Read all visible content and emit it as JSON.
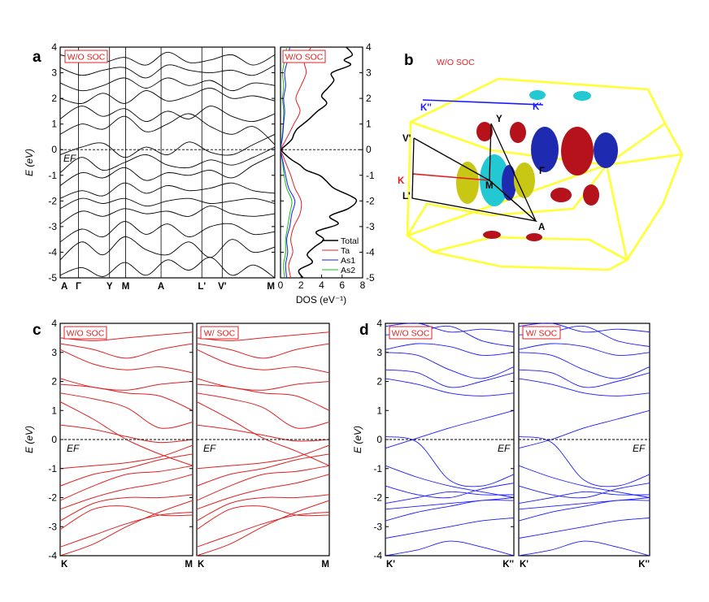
{
  "labels": {
    "panel_a": "a",
    "panel_b": "b",
    "panel_c": "c",
    "panel_d": "d",
    "wo_soc": "W/O SOC",
    "w_soc": "W/ SOC",
    "energy_axis": "E (eV)",
    "fermi": "EF",
    "dos_axis": "DOS (eV⁻¹)"
  },
  "colors": {
    "wo_soc_box": "#e02020",
    "c_bands": "#e02020",
    "d_bands": "#1a1aff",
    "bz": "#ffff33",
    "kpath_K": "#e02020",
    "kpath_Kp": "#1a1aff",
    "fs_red": "#b5121b",
    "fs_blue": "#1e2bb0",
    "fs_yellow": "#c8c814",
    "fs_cyan": "#22c8d2"
  },
  "panel_b": {
    "kpoints": [
      "K''",
      "K'",
      "Y",
      "V'",
      "Γ",
      "K",
      "M",
      "L'",
      "A"
    ]
  },
  "chart_data": [
    {
      "id": "a-bands",
      "type": "line",
      "ylabel": "E (eV)",
      "ylim": [
        -5,
        4
      ],
      "yticks": [
        -5,
        -4,
        -3,
        -2,
        -1,
        0,
        1,
        2,
        3,
        4
      ],
      "x_tick_labels": [
        "A",
        "Γ",
        "Y",
        "M",
        "A",
        "L'",
        "V'",
        "M"
      ],
      "x_tick_pos": [
        0,
        0.085,
        0.23,
        0.305,
        0.47,
        0.66,
        0.755,
        1.0
      ],
      "annotation": "EF",
      "box_label": "W/O SOC",
      "bands": [
        [
          -4.9,
          -4.6,
          -4.95,
          -4.4,
          -4.9,
          -4.3,
          -4.7,
          -4.2,
          -4.9,
          -4.5,
          -5.0
        ],
        [
          -4.3,
          -3.6,
          -4.1,
          -3.4,
          -3.9,
          -4.1,
          -3.6,
          -4.2,
          -3.5,
          -4.0,
          -3.8
        ],
        [
          -3.6,
          -3.1,
          -3.4,
          -2.8,
          -3.3,
          -2.9,
          -3.4,
          -3.0,
          -2.9,
          -3.3,
          -3.2
        ],
        [
          -2.9,
          -2.4,
          -2.6,
          -2.3,
          -2.5,
          -2.4,
          -2.6,
          -2.2,
          -2.5,
          -2.6,
          -2.5
        ],
        [
          -2.3,
          -1.9,
          -2.1,
          -1.9,
          -2.2,
          -2.0,
          -1.9,
          -2.1,
          -2.0,
          -1.9,
          -2.1
        ],
        [
          -1.9,
          -1.6,
          -1.8,
          -1.3,
          -1.7,
          -1.4,
          -1.6,
          -1.5,
          -1.3,
          -1.6,
          -1.7
        ],
        [
          -1.4,
          -0.9,
          -1.1,
          -0.7,
          -1.2,
          -0.9,
          -1.0,
          -0.8,
          -1.1,
          -0.6,
          -0.2
        ],
        [
          -0.9,
          -0.3,
          -0.8,
          -0.5,
          -0.2,
          -0.6,
          -0.7,
          -0.4,
          -0.6,
          -0.3,
          0.1
        ],
        [
          -0.2,
          0.1,
          0.25,
          -0.3,
          0.1,
          -0.2,
          0.3,
          -0.1,
          -0.2,
          0.2,
          0.6
        ],
        [
          0.6,
          1.0,
          0.8,
          1.3,
          0.7,
          1.0,
          1.4,
          0.9,
          0.6,
          0.9,
          0.2
        ],
        [
          1.2,
          1.7,
          1.3,
          1.6,
          1.1,
          1.5,
          1.2,
          1.7,
          1.3,
          1.1,
          1.4
        ],
        [
          2.0,
          1.8,
          2.2,
          1.8,
          2.3,
          1.9,
          2.1,
          2.4,
          2.0,
          2.1,
          1.9
        ],
        [
          2.6,
          2.3,
          2.5,
          2.8,
          2.4,
          2.8,
          2.5,
          2.7,
          2.3,
          2.6,
          2.5
        ],
        [
          3.2,
          2.9,
          3.1,
          3.2,
          2.8,
          3.3,
          3.1,
          3.0,
          3.1,
          2.9,
          3.3
        ],
        [
          3.7,
          3.5,
          3.4,
          3.6,
          3.3,
          3.8,
          3.4,
          3.5,
          3.7,
          3.3,
          3.7
        ]
      ]
    },
    {
      "id": "a-dos",
      "type": "line",
      "xlabel": "DOS (eV⁻¹)",
      "xlim": [
        0,
        8
      ],
      "xticks": [
        0,
        2,
        4,
        6,
        8
      ],
      "ylim": [
        -5,
        4
      ],
      "yticks": [
        -5,
        -4,
        -3,
        -2,
        -1,
        0,
        1,
        2,
        3,
        4
      ],
      "box_label": "W/O SOC",
      "legend": [
        "Total",
        "Ta",
        "As1",
        "As2"
      ],
      "legend_position": "bottom-right",
      "series": [
        {
          "name": "Total",
          "color": "#000000",
          "e": [
            -5.0,
            -4.7,
            -4.4,
            -4.1,
            -3.8,
            -3.5,
            -3.2,
            -2.9,
            -2.6,
            -2.3,
            -2.0,
            -1.8,
            -1.5,
            -1.2,
            -1.0,
            -0.8,
            -0.6,
            -0.4,
            -0.2,
            0.0,
            0.2,
            0.4,
            0.6,
            0.8,
            1.0,
            1.2,
            1.5,
            1.8,
            2.1,
            2.4,
            2.7,
            3.0,
            3.3,
            3.5,
            3.7,
            4.0
          ],
          "d": [
            2.2,
            1.8,
            3.1,
            2.6,
            3.3,
            4.2,
            3.5,
            5.6,
            4.8,
            6.6,
            7.4,
            6.8,
            5.2,
            4.4,
            3.8,
            2.5,
            1.9,
            1.1,
            0.5,
            0.1,
            0.6,
            1.1,
            1.3,
            1.6,
            2.2,
            2.8,
            3.6,
            4.5,
            4.0,
            4.6,
            5.2,
            5.0,
            6.8,
            6.2,
            7.0,
            6.4
          ]
        },
        {
          "name": "Ta",
          "color": "#e02020",
          "e": [
            -5.0,
            -4.5,
            -4.0,
            -3.5,
            -3.0,
            -2.5,
            -2.0,
            -1.5,
            -1.0,
            -0.6,
            -0.3,
            0.0,
            0.3,
            0.6,
            1.0,
            1.5,
            2.0,
            2.5,
            3.0,
            3.5,
            4.0
          ],
          "d": [
            1.0,
            0.8,
            1.2,
            1.0,
            1.3,
            1.9,
            2.0,
            1.4,
            1.0,
            0.6,
            0.3,
            0.05,
            0.4,
            0.8,
            1.3,
            1.9,
            1.5,
            2.0,
            2.5,
            2.3,
            3.0
          ]
        },
        {
          "name": "As1",
          "color": "#1a1aff",
          "e": [
            -5.0,
            -4.5,
            -4.0,
            -3.5,
            -3.0,
            -2.5,
            -2.0,
            -1.5,
            -1.0,
            -0.5,
            0.0,
            0.5,
            1.0,
            1.5,
            2.0,
            2.5,
            3.0,
            3.5,
            4.0
          ],
          "d": [
            0.6,
            0.5,
            0.7,
            0.6,
            0.9,
            1.1,
            1.4,
            0.8,
            0.5,
            0.25,
            0.03,
            0.2,
            0.3,
            0.4,
            0.3,
            0.5,
            0.4,
            0.7,
            0.9
          ]
        },
        {
          "name": "As2",
          "color": "#10c010",
          "e": [
            -5.0,
            -4.5,
            -4.0,
            -3.5,
            -3.0,
            -2.5,
            -2.0,
            -1.5,
            -1.0,
            -0.5,
            0.0,
            0.5,
            1.0,
            1.5,
            2.0,
            2.5,
            3.0,
            3.5,
            4.0
          ],
          "d": [
            0.4,
            0.3,
            0.5,
            0.5,
            0.7,
            0.9,
            1.1,
            0.6,
            0.35,
            0.2,
            0.02,
            0.15,
            0.25,
            0.3,
            0.2,
            0.3,
            0.2,
            0.4,
            0.6
          ]
        }
      ]
    },
    {
      "id": "c-wo",
      "type": "line",
      "ylabel": "E (eV)",
      "ylim": [
        -4,
        4
      ],
      "yticks": [
        -4,
        -3,
        -2,
        -1,
        0,
        1,
        2,
        3,
        4
      ],
      "x_tick_labels": [
        "K",
        "M"
      ],
      "annotation": "EF",
      "box_label": "W/O SOC",
      "color": "#e02020",
      "bands": [
        [
          -4.0,
          -3.6,
          -3.0,
          -2.5,
          -2.1
        ],
        [
          -3.7,
          -3.3,
          -2.9,
          -2.6,
          -2.5
        ],
        [
          -3.1,
          -2.4,
          -2.3,
          -2.6,
          -2.6
        ],
        [
          -2.8,
          -2.2,
          -2.0,
          -2.0,
          -1.9
        ],
        [
          -2.4,
          -2.0,
          -1.7,
          -1.5,
          -1.2
        ],
        [
          -2.1,
          -1.6,
          -1.2,
          -1.1,
          -0.9
        ],
        [
          -1.6,
          -1.2,
          -1.0,
          -0.7,
          -0.5
        ],
        [
          -1.0,
          -0.9,
          -0.8,
          -0.6,
          -0.2
        ],
        [
          1.3,
          0.7,
          0.0,
          -0.5,
          -0.9
        ],
        [
          0.5,
          0.35,
          0.1,
          -0.1,
          0.0
        ],
        [
          1.6,
          1.4,
          1.1,
          0.4,
          0.6
        ],
        [
          1.9,
          1.8,
          1.6,
          1.5,
          1.0
        ],
        [
          2.1,
          1.8,
          1.7,
          1.9,
          2.0
        ],
        [
          3.1,
          2.6,
          2.4,
          2.5,
          2.3
        ],
        [
          3.3,
          3.1,
          2.8,
          3.1,
          3.3
        ],
        [
          3.5,
          3.4,
          3.5,
          3.6,
          3.7
        ]
      ]
    },
    {
      "id": "c-w",
      "type": "line",
      "ylim": [
        -4,
        4
      ],
      "x_tick_labels": [
        "K",
        "M"
      ],
      "annotation": "EF",
      "box_label": "W/ SOC",
      "color": "#e02020",
      "bands": [
        [
          -4.0,
          -3.6,
          -3.0,
          -2.5,
          -2.1
        ],
        [
          -3.7,
          -3.3,
          -2.9,
          -2.6,
          -2.5
        ],
        [
          -3.1,
          -2.4,
          -2.3,
          -2.6,
          -2.6
        ],
        [
          -2.8,
          -2.2,
          -2.0,
          -2.0,
          -1.9
        ],
        [
          -2.4,
          -2.0,
          -1.7,
          -1.5,
          -1.2
        ],
        [
          -2.1,
          -1.6,
          -1.2,
          -1.1,
          -0.9
        ],
        [
          -1.6,
          -1.2,
          -1.0,
          -0.7,
          -0.5
        ],
        [
          -1.0,
          -0.9,
          -0.8,
          -0.6,
          -0.2
        ],
        [
          1.3,
          0.7,
          0.05,
          -0.4,
          -0.9
        ],
        [
          0.5,
          0.35,
          0.15,
          -0.05,
          0.0
        ],
        [
          1.6,
          1.4,
          1.1,
          0.4,
          0.6
        ],
        [
          1.9,
          1.8,
          1.6,
          1.5,
          1.0
        ],
        [
          2.1,
          1.8,
          1.7,
          1.9,
          2.0
        ],
        [
          3.1,
          2.6,
          2.4,
          2.5,
          2.3
        ],
        [
          3.3,
          3.1,
          2.8,
          3.1,
          3.3
        ],
        [
          3.5,
          3.4,
          3.5,
          3.6,
          3.7
        ]
      ]
    },
    {
      "id": "d-wo",
      "type": "line",
      "ylabel": "E (eV)",
      "ylim": [
        -4,
        4
      ],
      "yticks": [
        -4,
        -3,
        -2,
        -1,
        0,
        1,
        2,
        3,
        4
      ],
      "x_tick_labels": [
        "K'",
        "K''"
      ],
      "annotation": "EF",
      "box_label": "W/O SOC",
      "color": "#1a1aff",
      "bands": [
        [
          -4.0,
          -3.8,
          -3.5,
          -3.7,
          -4.0
        ],
        [
          -3.4,
          -3.2,
          -3.0,
          -2.8,
          -2.7
        ],
        [
          -2.8,
          -2.5,
          -2.3,
          -2.1,
          -2.1
        ],
        [
          -2.4,
          -2.3,
          -2.2,
          -2.1,
          -2.0
        ],
        [
          -2.2,
          -2.0,
          -1.8,
          -1.9,
          -1.9
        ],
        [
          -1.6,
          -1.9,
          -2.0,
          -1.7,
          -1.5
        ],
        [
          -0.9,
          -1.3,
          -1.6,
          -1.8,
          -2.0
        ],
        [
          0.1,
          -0.1,
          -1.4,
          -1.6,
          -1.2
        ],
        [
          -0.3,
          0.05,
          0.4,
          0.7,
          1.0
        ],
        [
          2.1,
          1.9,
          1.6,
          1.5,
          1.6
        ],
        [
          2.4,
          2.3,
          1.8,
          2.0,
          2.3
        ],
        [
          3.0,
          2.9,
          2.4,
          2.1,
          2.5
        ],
        [
          3.1,
          3.3,
          3.2,
          2.9,
          3.0
        ],
        [
          3.6,
          3.7,
          3.9,
          3.4,
          3.2
        ],
        [
          3.9,
          4.0,
          3.7,
          3.8,
          3.7
        ]
      ]
    },
    {
      "id": "d-w",
      "type": "line",
      "ylim": [
        -4,
        4
      ],
      "x_tick_labels": [
        "K'",
        "K''"
      ],
      "annotation": "EF",
      "box_label": "W/ SOC",
      "color": "#1a1aff",
      "bands": [
        [
          -4.0,
          -3.8,
          -3.5,
          -3.7,
          -4.0
        ],
        [
          -3.4,
          -3.2,
          -3.0,
          -2.8,
          -2.7
        ],
        [
          -2.8,
          -2.5,
          -2.3,
          -2.1,
          -2.1
        ],
        [
          -2.4,
          -2.3,
          -2.2,
          -2.1,
          -2.0
        ],
        [
          -2.2,
          -2.0,
          -1.8,
          -1.9,
          -1.9
        ],
        [
          -1.6,
          -1.9,
          -2.0,
          -1.7,
          -1.5
        ],
        [
          -0.9,
          -1.3,
          -1.6,
          -1.8,
          -2.0
        ],
        [
          0.1,
          -0.1,
          -1.4,
          -1.6,
          -1.2
        ],
        [
          -0.3,
          0.0,
          0.4,
          0.7,
          1.0
        ],
        [
          2.1,
          1.9,
          1.6,
          1.5,
          1.6
        ],
        [
          2.4,
          2.3,
          1.8,
          2.0,
          2.3
        ],
        [
          3.0,
          2.9,
          2.4,
          2.1,
          2.5
        ],
        [
          3.1,
          3.3,
          3.2,
          2.9,
          3.0
        ],
        [
          3.6,
          3.7,
          3.9,
          3.4,
          3.2
        ],
        [
          3.9,
          4.0,
          3.7,
          3.8,
          3.7
        ]
      ]
    }
  ]
}
